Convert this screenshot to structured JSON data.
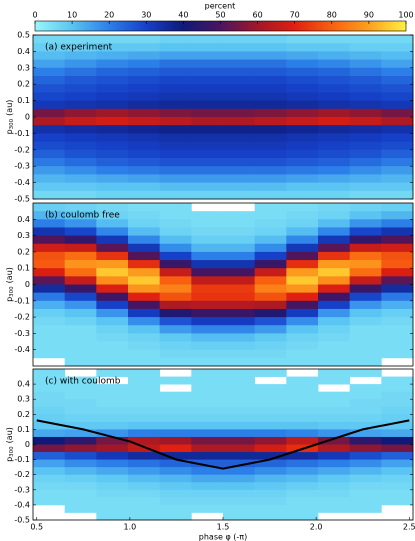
{
  "colorbar": {
    "label": "percent",
    "clim": [
      0,
      100
    ],
    "ticks": [
      0,
      10,
      20,
      30,
      40,
      50,
      60,
      70,
      80,
      90,
      100
    ],
    "colormap": [
      "#9af6fa",
      "#5ac4f2",
      "#2c7fe8",
      "#1640c8",
      "#0f1a78",
      "#4a1560",
      "#a01828",
      "#e02010",
      "#f86010",
      "#fca020",
      "#fff040"
    ]
  },
  "chart_data": [
    {
      "type": "heatmap",
      "title": "(a) experiment",
      "ylabel": "p",
      "ylabel_sub": "300",
      "ylabel_unit": "(au)",
      "xlim": [
        0.48,
        2.52
      ],
      "ylim": [
        -0.5,
        0.5
      ],
      "yticks": [
        0.5,
        0.4,
        0.3,
        0.2,
        0.1,
        0,
        -0.1,
        -0.2,
        -0.3,
        -0.4,
        -0.5
      ],
      "x": [
        0.565,
        0.735,
        0.905,
        1.075,
        1.245,
        1.415,
        1.585,
        1.755,
        1.925,
        2.095,
        2.265,
        2.435
      ],
      "y": [
        0.475,
        0.425,
        0.375,
        0.325,
        0.275,
        0.225,
        0.175,
        0.125,
        0.075,
        0.025,
        -0.025,
        -0.075,
        -0.125,
        -0.175,
        -0.225,
        -0.275,
        -0.325,
        -0.375,
        -0.425,
        -0.475
      ],
      "values": [
        [
          6,
          6,
          6,
          6,
          7,
          7,
          7,
          7,
          6,
          6,
          6,
          6
        ],
        [
          8,
          8,
          9,
          9,
          10,
          10,
          10,
          10,
          9,
          9,
          8,
          8
        ],
        [
          11,
          12,
          13,
          14,
          15,
          15,
          15,
          15,
          14,
          13,
          12,
          11
        ],
        [
          15,
          17,
          19,
          20,
          22,
          22,
          22,
          22,
          20,
          19,
          17,
          15
        ],
        [
          20,
          22,
          24,
          25,
          26,
          26,
          26,
          26,
          25,
          24,
          22,
          20
        ],
        [
          24,
          26,
          27,
          28,
          29,
          29,
          29,
          29,
          28,
          27,
          26,
          24
        ],
        [
          27,
          28,
          29,
          30,
          31,
          31,
          31,
          31,
          30,
          29,
          28,
          27
        ],
        [
          29,
          30,
          31,
          32,
          33,
          33,
          33,
          33,
          32,
          31,
          30,
          29
        ],
        [
          32,
          33,
          34,
          35,
          36,
          36,
          36,
          36,
          35,
          34,
          33,
          32
        ],
        [
          55,
          58,
          60,
          58,
          56,
          55,
          55,
          56,
          58,
          60,
          58,
          55
        ],
        [
          62,
          66,
          68,
          66,
          64,
          62,
          62,
          64,
          66,
          68,
          66,
          62
        ],
        [
          34,
          35,
          36,
          37,
          38,
          38,
          38,
          38,
          37,
          36,
          35,
          34
        ],
        [
          30,
          31,
          32,
          33,
          34,
          34,
          34,
          34,
          33,
          32,
          31,
          30
        ],
        [
          28,
          29,
          30,
          31,
          32,
          32,
          32,
          32,
          31,
          30,
          29,
          28
        ],
        [
          25,
          27,
          28,
          29,
          30,
          30,
          30,
          30,
          29,
          28,
          27,
          25
        ],
        [
          21,
          23,
          25,
          26,
          27,
          27,
          27,
          27,
          26,
          25,
          23,
          21
        ],
        [
          16,
          18,
          20,
          21,
          22,
          22,
          22,
          22,
          21,
          20,
          18,
          16
        ],
        [
          12,
          13,
          14,
          15,
          16,
          16,
          16,
          16,
          15,
          14,
          13,
          12
        ],
        [
          9,
          9,
          10,
          10,
          11,
          11,
          11,
          11,
          10,
          10,
          9,
          9
        ],
        [
          6,
          6,
          7,
          7,
          7,
          7,
          7,
          7,
          7,
          7,
          6,
          6
        ]
      ]
    },
    {
      "type": "heatmap",
      "title": "(b) coulomb free",
      "ylabel": "p",
      "ylabel_sub": "300",
      "ylabel_unit": "(au)",
      "xlim": [
        0.48,
        2.52
      ],
      "ylim": [
        -0.5,
        0.5
      ],
      "yticks": [
        0.4,
        0.3,
        0.2,
        0.1,
        0,
        -0.1,
        -0.2,
        -0.3,
        -0.4
      ],
      "x": [
        0.565,
        0.735,
        0.905,
        1.075,
        1.245,
        1.415,
        1.585,
        1.755,
        1.925,
        2.095,
        2.265,
        2.435
      ],
      "y": [
        0.475,
        0.425,
        0.375,
        0.325,
        0.275,
        0.225,
        0.175,
        0.125,
        0.075,
        0.025,
        -0.025,
        -0.075,
        -0.125,
        -0.175,
        -0.225,
        -0.275,
        -0.325,
        -0.375,
        -0.425,
        -0.475
      ],
      "values": [
        [
          8,
          7,
          6,
          5,
          5,
          null,
          null,
          5,
          5,
          6,
          7,
          8
        ],
        [
          12,
          10,
          7,
          6,
          5,
          5,
          5,
          5,
          6,
          7,
          10,
          12
        ],
        [
          20,
          17,
          11,
          7,
          6,
          5,
          5,
          6,
          7,
          11,
          17,
          20
        ],
        [
          33,
          29,
          19,
          11,
          7,
          6,
          6,
          7,
          11,
          19,
          29,
          33
        ],
        [
          51,
          46,
          32,
          19,
          11,
          8,
          8,
          11,
          19,
          32,
          46,
          51
        ],
        [
          67,
          66,
          52,
          32,
          18,
          12,
          12,
          18,
          32,
          52,
          66,
          67
        ],
        [
          78,
          82,
          73,
          51,
          30,
          20,
          20,
          30,
          51,
          73,
          82,
          78
        ],
        [
          79,
          88,
          89,
          72,
          47,
          33,
          33,
          47,
          72,
          89,
          88,
          79
        ],
        [
          69,
          82,
          95,
          89,
          66,
          49,
          49,
          66,
          89,
          95,
          82,
          69
        ],
        [
          52,
          66,
          87,
          95,
          80,
          65,
          65,
          80,
          95,
          87,
          66,
          52
        ],
        [
          35,
          47,
          69,
          88,
          85,
          74,
          74,
          85,
          88,
          69,
          47,
          35
        ],
        [
          21,
          29,
          48,
          70,
          78,
          73,
          73,
          78,
          70,
          48,
          29,
          21
        ],
        [
          13,
          17,
          30,
          49,
          62,
          63,
          63,
          62,
          49,
          30,
          17,
          13
        ],
        [
          8,
          10,
          17,
          31,
          43,
          47,
          47,
          43,
          31,
          17,
          10,
          8
        ],
        [
          6,
          7,
          10,
          18,
          27,
          31,
          31,
          27,
          18,
          10,
          7,
          6
        ],
        [
          5,
          5,
          7,
          10,
          16,
          19,
          19,
          16,
          10,
          7,
          5,
          5
        ],
        [
          5,
          5,
          6,
          7,
          9,
          11,
          11,
          9,
          7,
          6,
          5,
          5
        ],
        [
          5,
          5,
          5,
          6,
          7,
          8,
          8,
          7,
          6,
          5,
          5,
          5
        ],
        [
          5,
          5,
          5,
          5,
          6,
          6,
          6,
          6,
          5,
          5,
          5,
          5
        ],
        [
          null,
          5,
          5,
          5,
          5,
          5,
          5,
          5,
          5,
          5,
          5,
          null
        ]
      ]
    },
    {
      "type": "heatmap",
      "title": "(c) with coulomb",
      "ylabel": "p",
      "ylabel_sub": "300",
      "ylabel_unit": "(au)",
      "xlabel": "phase φ (-π)",
      "xlim": [
        0.48,
        2.52
      ],
      "ylim": [
        -0.5,
        0.5
      ],
      "yticks": [
        0.4,
        0.3,
        0.2,
        0.1,
        0,
        -0.1,
        -0.2,
        -0.3,
        -0.4,
        -0.5
      ],
      "xticks": [
        0.5,
        {
          "value": 1,
          "label": "1.0"
        },
        1.5,
        {
          "value": 2,
          "label": "2.0"
        },
        2.5
      ],
      "x": [
        0.565,
        0.735,
        0.905,
        1.075,
        1.245,
        1.415,
        1.585,
        1.755,
        1.925,
        2.095,
        2.265,
        2.435
      ],
      "y": [
        0.475,
        0.425,
        0.375,
        0.325,
        0.275,
        0.225,
        0.175,
        0.125,
        0.075,
        0.025,
        -0.025,
        -0.075,
        -0.125,
        -0.175,
        -0.225,
        -0.275,
        -0.325,
        -0.375,
        -0.425,
        -0.475
      ],
      "values": [
        [
          5,
          null,
          5,
          5,
          null,
          5,
          5,
          5,
          null,
          5,
          5,
          null
        ],
        [
          5,
          5,
          null,
          5,
          5,
          5,
          5,
          null,
          5,
          5,
          null,
          5
        ],
        [
          5,
          5,
          5,
          5,
          null,
          5,
          5,
          5,
          5,
          null,
          5,
          5
        ],
        [
          6,
          5,
          5,
          5,
          5,
          5,
          5,
          5,
          5,
          5,
          5,
          6
        ],
        [
          6,
          6,
          5,
          5,
          5,
          5,
          5,
          5,
          5,
          5,
          6,
          6
        ],
        [
          7,
          6,
          6,
          6,
          6,
          6,
          6,
          6,
          6,
          6,
          6,
          7
        ],
        [
          8,
          7,
          7,
          7,
          7,
          7,
          7,
          7,
          7,
          7,
          7,
          8
        ],
        [
          9,
          9,
          9,
          10,
          10,
          10,
          10,
          10,
          10,
          9,
          9,
          9
        ],
        [
          14,
          15,
          17,
          20,
          20,
          20,
          20,
          20,
          19,
          17,
          15,
          14
        ],
        [
          40,
          45,
          55,
          62,
          60,
          55,
          55,
          58,
          65,
          55,
          45,
          40
        ],
        [
          55,
          58,
          60,
          65,
          70,
          62,
          62,
          68,
          72,
          62,
          58,
          55
        ],
        [
          25,
          28,
          32,
          35,
          36,
          36,
          36,
          36,
          35,
          32,
          28,
          25
        ],
        [
          15,
          18,
          20,
          22,
          24,
          25,
          25,
          24,
          22,
          20,
          18,
          15
        ],
        [
          10,
          12,
          14,
          16,
          18,
          20,
          20,
          18,
          16,
          14,
          12,
          10
        ],
        [
          7,
          8,
          9,
          11,
          12,
          14,
          14,
          12,
          11,
          9,
          8,
          7
        ],
        [
          6,
          6,
          7,
          8,
          9,
          10,
          10,
          9,
          8,
          7,
          6,
          6
        ],
        [
          5,
          5,
          6,
          6,
          7,
          7,
          7,
          7,
          6,
          6,
          5,
          5
        ],
        [
          5,
          5,
          5,
          5,
          6,
          6,
          6,
          6,
          5,
          5,
          5,
          5
        ],
        [
          null,
          5,
          5,
          5,
          5,
          5,
          5,
          5,
          5,
          5,
          5,
          null
        ],
        [
          null,
          null,
          5,
          5,
          5,
          null,
          5,
          5,
          5,
          null,
          null,
          null
        ]
      ],
      "overlay": {
        "color": "#000000",
        "x": [
          0.5,
          0.75,
          1.0,
          1.25,
          1.5,
          1.75,
          2.0,
          2.25,
          2.5
        ],
        "y": [
          0.16,
          0.1,
          0.02,
          -0.1,
          -0.16,
          -0.1,
          0.0,
          0.1,
          0.16
        ]
      }
    }
  ]
}
